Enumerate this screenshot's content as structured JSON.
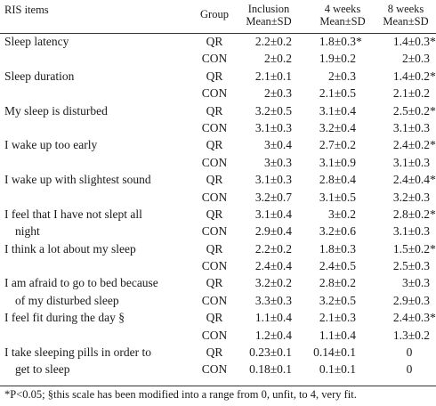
{
  "header": {
    "items": "RIS items",
    "group": "Group",
    "inclusion": "Inclusion",
    "week4": "4 weeks",
    "week8": "8 weeks",
    "mean_sd": "Mean±SD"
  },
  "rows": [
    {
      "item": "Sleep latency",
      "group": "QR",
      "inclusion": "2.2±0.2",
      "w4": "1.8±0.3",
      "w4_star": "*",
      "w8": "1.4±0.3",
      "w8_star": "*"
    },
    {
      "item": "",
      "group": "CON",
      "inclusion": "2±0.2",
      "w4": "1.9±0.2",
      "w4_star": "",
      "w8": "2±0.3",
      "w8_star": ""
    },
    {
      "item": "Sleep duration",
      "group": "QR",
      "inclusion": "2.1±0.1",
      "w4": "2±0.3",
      "w4_star": "",
      "w8": "1.4±0.2",
      "w8_star": "*"
    },
    {
      "item": "",
      "group": "CON",
      "inclusion": "2±0.3",
      "w4": "2.1±0.5",
      "w4_star": "",
      "w8": "2.1±0.2",
      "w8_star": ""
    },
    {
      "item": "My sleep is disturbed",
      "group": "QR",
      "inclusion": "3.2±0.5",
      "w4": "3.1±0.4",
      "w4_star": "",
      "w8": "2.5±0.2",
      "w8_star": "*"
    },
    {
      "item": "",
      "group": "CON",
      "inclusion": "3.1±0.3",
      "w4": "3.2±0.4",
      "w4_star": "",
      "w8": "3.1±0.3",
      "w8_star": ""
    },
    {
      "item": "I wake up too early",
      "group": "QR",
      "inclusion": "3±0.4",
      "w4": "2.7±0.2",
      "w4_star": "",
      "w8": "2.4±0.2",
      "w8_star": "*"
    },
    {
      "item": "",
      "group": "CON",
      "inclusion": "3±0.3",
      "w4": "3.1±0.9",
      "w4_star": "",
      "w8": "3.1±0.3",
      "w8_star": ""
    },
    {
      "item": "I wake up with slightest sound",
      "group": "QR",
      "inclusion": "3.1±0.3",
      "w4": "2.8±0.4",
      "w4_star": "",
      "w8": "2.4±0.4",
      "w8_star": "*"
    },
    {
      "item": "",
      "group": "CON",
      "inclusion": "3.2±0.7",
      "w4": "3.1±0.5",
      "w4_star": "",
      "w8": "3.2±0.3",
      "w8_star": ""
    },
    {
      "item": "I feel that I have not slept all",
      "group": "QR",
      "inclusion": "3.1±0.4",
      "w4": "3±0.2",
      "w4_star": "",
      "w8": "2.8±0.2",
      "w8_star": "*"
    },
    {
      "item": "night",
      "indent": true,
      "group": "CON",
      "inclusion": "2.9±0.4",
      "w4": "3.2±0.6",
      "w4_star": "",
      "w8": "3.1±0.3",
      "w8_star": ""
    },
    {
      "item": "I think a lot about my sleep",
      "group": "QR",
      "inclusion": "2.2±0.2",
      "w4": "1.8±0.3",
      "w4_star": "",
      "w8": "1.5±0.2",
      "w8_star": "*"
    },
    {
      "item": "",
      "group": "CON",
      "inclusion": "2.4±0.4",
      "w4": "2.4±0.5",
      "w4_star": "",
      "w8": "2.5±0.3",
      "w8_star": ""
    },
    {
      "item": "I am afraid to go to bed because",
      "group": "QR",
      "inclusion": "3.2±0.2",
      "w4": "2.8±0.2",
      "w4_star": "",
      "w8": "3±0.3",
      "w8_star": ""
    },
    {
      "item": "of my disturbed sleep",
      "indent": true,
      "group": "CON",
      "inclusion": "3.3±0.3",
      "w4": "3.2±0.5",
      "w4_star": "",
      "w8": "2.9±0.3",
      "w8_star": ""
    },
    {
      "item": "I feel fit during the day §",
      "group": "QR",
      "inclusion": "1.1±0.4",
      "w4": "2.1±0.3",
      "w4_star": "",
      "w8": "2.4±0.3",
      "w8_star": "*"
    },
    {
      "item": "",
      "group": "CON",
      "inclusion": "1.2±0.4",
      "w4": "1.1±0.4",
      "w4_star": "",
      "w8": "1.3±0.2",
      "w8_star": ""
    },
    {
      "item": "I take sleeping pills in order to",
      "group": "QR",
      "inclusion": "0.23±0.1",
      "w4": "0.14±0.1",
      "w4_star": "",
      "w8": "0",
      "w8_star": "",
      "zero": true
    },
    {
      "item": "get to sleep",
      "indent": true,
      "group": "CON",
      "inclusion": "0.18±0.1",
      "w4": "0.1±0.1",
      "w4_star": "",
      "w8": "0",
      "w8_star": "",
      "zero": true
    }
  ],
  "footnote": "*P<0.05; §this scale has been modified into a range from 0, unfit, to 4, very fit."
}
